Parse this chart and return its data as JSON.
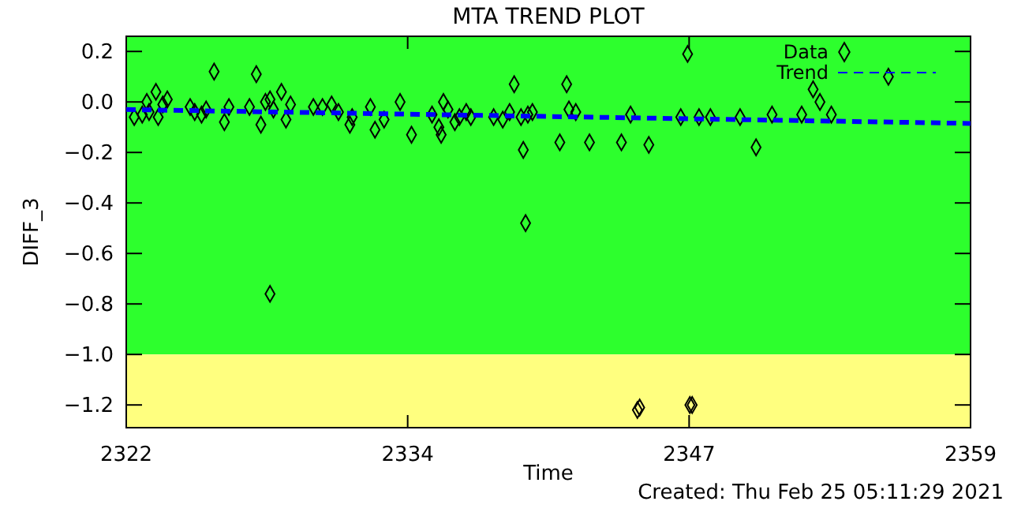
{
  "chart_data": {
    "type": "scatter",
    "title": "MTA TREND PLOT",
    "xlabel": "Time",
    "ylabel": "DIFF_3",
    "annotations": [
      "Created: Thu Feb 25 05:11:29 2021"
    ],
    "xlim": [
      2322,
      2359
    ],
    "xticks": [
      2322,
      {
        "value": 2334.333,
        "label": "2334"
      },
      {
        "value": 2346.667,
        "label": "2347"
      },
      2359
    ],
    "ylim": [
      -1.29,
      0.26
    ],
    "yticks": [
      {
        "value": 0.2,
        "label": "0.2"
      },
      {
        "value": 0,
        "label": "0.0"
      },
      {
        "value": -0.2,
        "label": "−0.2"
      },
      {
        "value": -0.4,
        "label": "−0.4"
      },
      {
        "value": -0.6,
        "label": "−0.6"
      },
      {
        "value": -0.8,
        "label": "−0.8"
      },
      {
        "value": -1.0,
        "label": "−1.0"
      },
      {
        "value": -1.2,
        "label": "−1.2"
      }
    ],
    "bands": [
      {
        "axis": "y",
        "from": -1.0,
        "to": 0.26,
        "color": "#2dff2d"
      },
      {
        "axis": "y",
        "from": -1.29,
        "to": -1.0,
        "color": "#ffff7f"
      }
    ],
    "grid": false,
    "legend": "top right",
    "series": [
      {
        "name": "Data",
        "marker": "diamond",
        "color": "#000000",
        "x": [
          2322.35,
          2322.7,
          2322.9,
          2323.0,
          2323.3,
          2323.4,
          2323.6,
          2323.8,
          2324.8,
          2325.0,
          2325.3,
          2325.5,
          2325.85,
          2326.3,
          2326.5,
          2327.4,
          2327.7,
          2327.9,
          2328.1,
          2328.3,
          2328.3,
          2328.45,
          2328.8,
          2329.0,
          2329.2,
          2330.2,
          2330.6,
          2331.0,
          2331.3,
          2331.8,
          2331.9,
          2332.7,
          2332.9,
          2333.3,
          2334.0,
          2334.5,
          2335.4,
          2335.7,
          2335.8,
          2335.9,
          2336.1,
          2336.4,
          2336.6,
          2336.9,
          2337.1,
          2338.1,
          2338.5,
          2338.8,
          2339.0,
          2339.3,
          2339.4,
          2339.5,
          2339.6,
          2339.8,
          2341.0,
          2341.3,
          2341.4,
          2341.7,
          2342.3,
          2343.7,
          2344.1,
          2344.4,
          2344.5,
          2344.9,
          2346.3,
          2346.6,
          2346.7,
          2346.8,
          2347.1,
          2347.6,
          2348.9,
          2349.6,
          2350.3,
          2351.6,
          2352.1,
          2352.4,
          2352.9,
          2355.4
        ],
        "values": [
          -0.06,
          -0.05,
          0.0,
          -0.04,
          0.04,
          -0.06,
          -0.01,
          0.01,
          -0.02,
          -0.04,
          -0.05,
          -0.03,
          0.12,
          -0.08,
          -0.02,
          -0.02,
          0.11,
          -0.09,
          0.0,
          0.01,
          -0.76,
          -0.03,
          0.04,
          -0.07,
          -0.01,
          -0.02,
          -0.02,
          -0.01,
          -0.04,
          -0.09,
          -0.06,
          -0.02,
          -0.11,
          -0.07,
          0.0,
          -0.13,
          -0.05,
          -0.1,
          -0.13,
          0.0,
          -0.03,
          -0.08,
          -0.06,
          -0.04,
          -0.06,
          -0.06,
          -0.07,
          -0.04,
          0.07,
          -0.06,
          -0.19,
          -0.48,
          -0.05,
          -0.04,
          -0.16,
          0.07,
          -0.03,
          -0.04,
          -0.16,
          -0.16,
          -0.05,
          -1.22,
          -1.21,
          -0.17,
          -0.06,
          0.19,
          -1.2,
          -1.2,
          -0.06,
          -0.06,
          -0.06,
          -0.18,
          -0.05,
          -0.05,
          0.05,
          0.0,
          -0.05,
          0.1
        ]
      },
      {
        "name": "Trend",
        "type": "line",
        "marker": "none",
        "line_style": "dashed",
        "color": "#0000ff",
        "x": [
          2322,
          2359
        ],
        "values": [
          -0.03,
          -0.085
        ]
      }
    ]
  }
}
